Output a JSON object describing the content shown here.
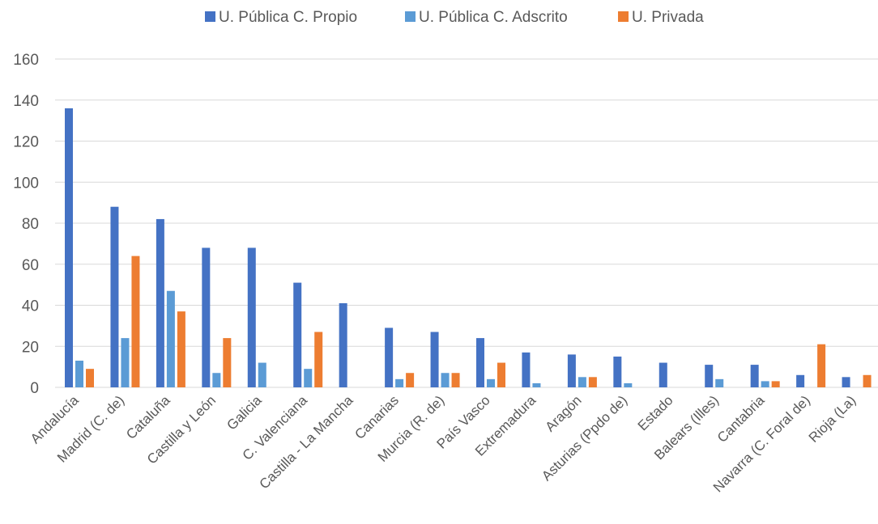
{
  "chart_data": {
    "type": "bar",
    "title": "",
    "xlabel": "",
    "ylabel": "",
    "ylim": [
      0,
      160
    ],
    "yticks": [
      0,
      20,
      40,
      60,
      80,
      100,
      120,
      140,
      160
    ],
    "grid": true,
    "legend_position": "top",
    "categories": [
      "Andalucía",
      "Madrid (C. de)",
      "Cataluña",
      "Castilla y León",
      "Galicia",
      "C. Valenciana",
      "Castilla - La Mancha",
      "Canarias",
      "Murcia (R. de)",
      "País Vasco",
      "Extremadura",
      "Aragón",
      "Asturias (Ppdo de)",
      "Estado",
      "Balears (Illes)",
      "Cantabria",
      "Navarra (C. Foral de)",
      "Rioja (La)"
    ],
    "series": [
      {
        "name": "U. Pública C. Propio",
        "color": "#4472c4",
        "values": [
          136,
          88,
          82,
          68,
          68,
          51,
          41,
          29,
          27,
          24,
          17,
          16,
          15,
          12,
          11,
          11,
          6,
          5
        ]
      },
      {
        "name": "U. Pública C. Adscrito",
        "color": "#5b9bd5",
        "values": [
          13,
          24,
          47,
          7,
          12,
          9,
          0,
          4,
          7,
          4,
          2,
          5,
          2,
          0,
          4,
          3,
          0,
          0
        ]
      },
      {
        "name": "U. Privada",
        "color": "#ed7d31",
        "values": [
          9,
          64,
          37,
          24,
          0,
          27,
          0,
          7,
          7,
          12,
          0,
          5,
          0,
          0,
          0,
          3,
          21,
          6
        ]
      }
    ]
  }
}
